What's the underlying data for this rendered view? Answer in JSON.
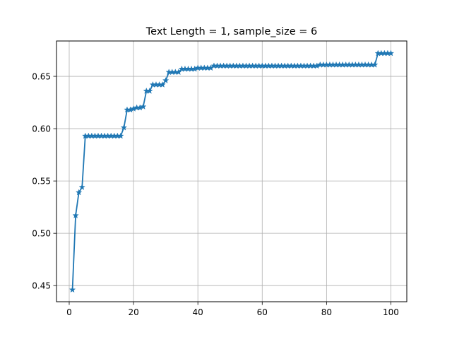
{
  "chart_data": {
    "type": "line",
    "title": "Text Length = 1, sample_size = 6",
    "xlabel": "",
    "ylabel": "",
    "xlim": [
      -3.95,
      104.95
    ],
    "ylim": [
      0.4346,
      0.6838
    ],
    "xticks": [
      0,
      20,
      40,
      60,
      80,
      100
    ],
    "yticks": [
      0.45,
      0.5,
      0.55,
      0.6,
      0.65
    ],
    "xtick_labels": [
      "0",
      "20",
      "40",
      "60",
      "80",
      "100"
    ],
    "ytick_labels": [
      "0.45",
      "0.50",
      "0.55",
      "0.60",
      "0.65"
    ],
    "grid": true,
    "line_color": "#1f77b4",
    "marker": "star",
    "series": [
      {
        "x": [
          1,
          2,
          3,
          4,
          5,
          6,
          7,
          8,
          9,
          10,
          11,
          12,
          13,
          14,
          15,
          16,
          17,
          18,
          19,
          20,
          21,
          22,
          23,
          24,
          25,
          26,
          27,
          28,
          29,
          30,
          31,
          32,
          33,
          34,
          35,
          36,
          37,
          38,
          39,
          40,
          41,
          42,
          43,
          44,
          45,
          46,
          47,
          48,
          49,
          50,
          51,
          52,
          53,
          54,
          55,
          56,
          57,
          58,
          59,
          60,
          61,
          62,
          63,
          64,
          65,
          66,
          67,
          68,
          69,
          70,
          71,
          72,
          73,
          74,
          75,
          76,
          77,
          78,
          79,
          80,
          81,
          82,
          83,
          84,
          85,
          86,
          87,
          88,
          89,
          90,
          91,
          92,
          93,
          94,
          95,
          96,
          97,
          98,
          99,
          100
        ],
        "values": [
          0.446,
          0.517,
          0.539,
          0.544,
          0.593,
          0.593,
          0.593,
          0.593,
          0.593,
          0.593,
          0.593,
          0.593,
          0.593,
          0.593,
          0.593,
          0.593,
          0.601,
          0.618,
          0.618,
          0.619,
          0.62,
          0.62,
          0.621,
          0.636,
          0.636,
          0.642,
          0.642,
          0.642,
          0.642,
          0.646,
          0.654,
          0.654,
          0.654,
          0.654,
          0.657,
          0.657,
          0.657,
          0.657,
          0.657,
          0.658,
          0.658,
          0.658,
          0.658,
          0.658,
          0.66,
          0.66,
          0.66,
          0.66,
          0.66,
          0.66,
          0.66,
          0.66,
          0.66,
          0.66,
          0.66,
          0.66,
          0.66,
          0.66,
          0.66,
          0.66,
          0.66,
          0.66,
          0.66,
          0.66,
          0.66,
          0.66,
          0.66,
          0.66,
          0.66,
          0.66,
          0.66,
          0.66,
          0.66,
          0.66,
          0.66,
          0.66,
          0.66,
          0.661,
          0.661,
          0.661,
          0.661,
          0.661,
          0.661,
          0.661,
          0.661,
          0.661,
          0.661,
          0.661,
          0.661,
          0.661,
          0.661,
          0.661,
          0.661,
          0.661,
          0.661,
          0.672,
          0.672,
          0.672,
          0.672,
          0.672
        ]
      }
    ]
  }
}
